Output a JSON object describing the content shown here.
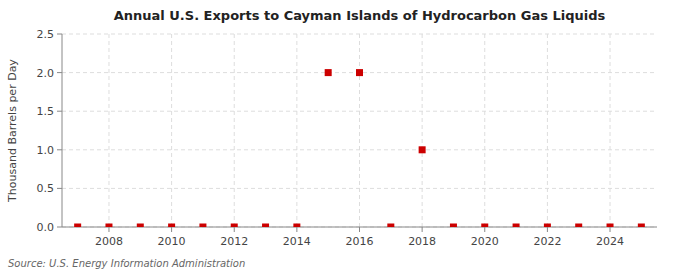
{
  "chart_data": {
    "type": "scatter",
    "title": "Annual U.S. Exports to Cayman Islands of Hydrocarbon Gas Liquids",
    "ylabel": "Thousand Barrels per Day",
    "annotations": [
      "Source: U.S. Energy Information Administration"
    ],
    "x": [
      2007,
      2008,
      2009,
      2010,
      2011,
      2012,
      2013,
      2014,
      2015,
      2016,
      2017,
      2018,
      2019,
      2020,
      2021,
      2022,
      2023,
      2024,
      2025
    ],
    "values": [
      0,
      0,
      0,
      0,
      0,
      0,
      0,
      0,
      2.0,
      2.0,
      0,
      1.0,
      0,
      0,
      0,
      0,
      0,
      0,
      0
    ],
    "color": "#cc0000",
    "marker": "square",
    "xlim": [
      2006.5,
      2025.5
    ],
    "xticks": [
      2008,
      2010,
      2012,
      2014,
      2016,
      2018,
      2020,
      2022,
      2024
    ],
    "ylim": [
      0.0,
      2.5
    ],
    "yticks": [
      {
        "value": 0.0,
        "label": "0.0"
      },
      0.5,
      {
        "value": 1.0,
        "label": "1.0"
      },
      1.5,
      {
        "value": 2.0,
        "label": "2.0"
      },
      2.5
    ],
    "grid": true
  }
}
